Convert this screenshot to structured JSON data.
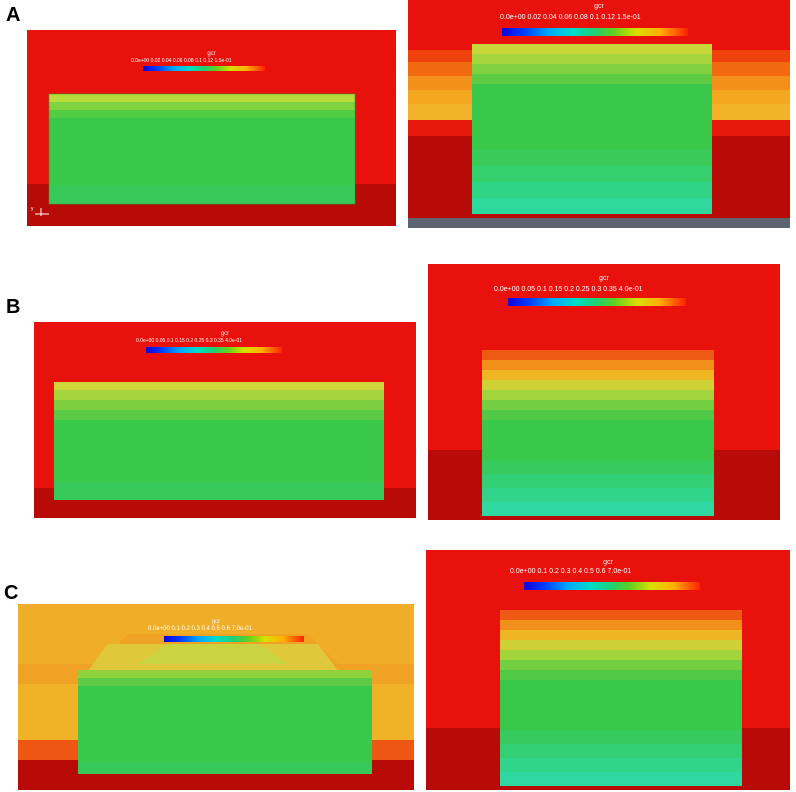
{
  "panels": {
    "A": {
      "label": "A",
      "left": {
        "colorbar_title": "gcr",
        "colorbar_ticks": "0.0e+00 0.02  0.04  0.06  0.08  0.1   0.12     1.5e-01",
        "axis_label": "y"
      },
      "right": {
        "colorbar_title": "gcr",
        "colorbar_ticks": "0.0e+00  0.02   0.04   0.06   0.08    0.1    0.12    1.5e-01"
      }
    },
    "B": {
      "label": "B",
      "left": {
        "colorbar_title": "gcr",
        "colorbar_ticks": "0.0e+00 0.05  0.1   0.15  0.2   0.25  0.3   0.35  4.0e-01"
      },
      "right": {
        "colorbar_title": "gcr",
        "colorbar_ticks": "0.0e+00  0.05   0.1   0.15   0.2   0.25   0.3   0.35  4.0e-01"
      }
    },
    "C": {
      "label": "C",
      "left": {
        "colorbar_title": "gcr",
        "colorbar_ticks": "0.0e+00  0.1   0.2   0.3   0.4   0.5   0.6   7.0e-01"
      },
      "right": {
        "colorbar_title": "gcr",
        "colorbar_ticks": "0.0e+00   0.1    0.2    0.3    0.4    0.5    0.6    7.0e-01"
      }
    }
  },
  "colors": {
    "background_red": "#e8110b",
    "dark_red": "#b80a06",
    "field_green": "#35c94a",
    "field_cyan": "#2fd8a0"
  }
}
